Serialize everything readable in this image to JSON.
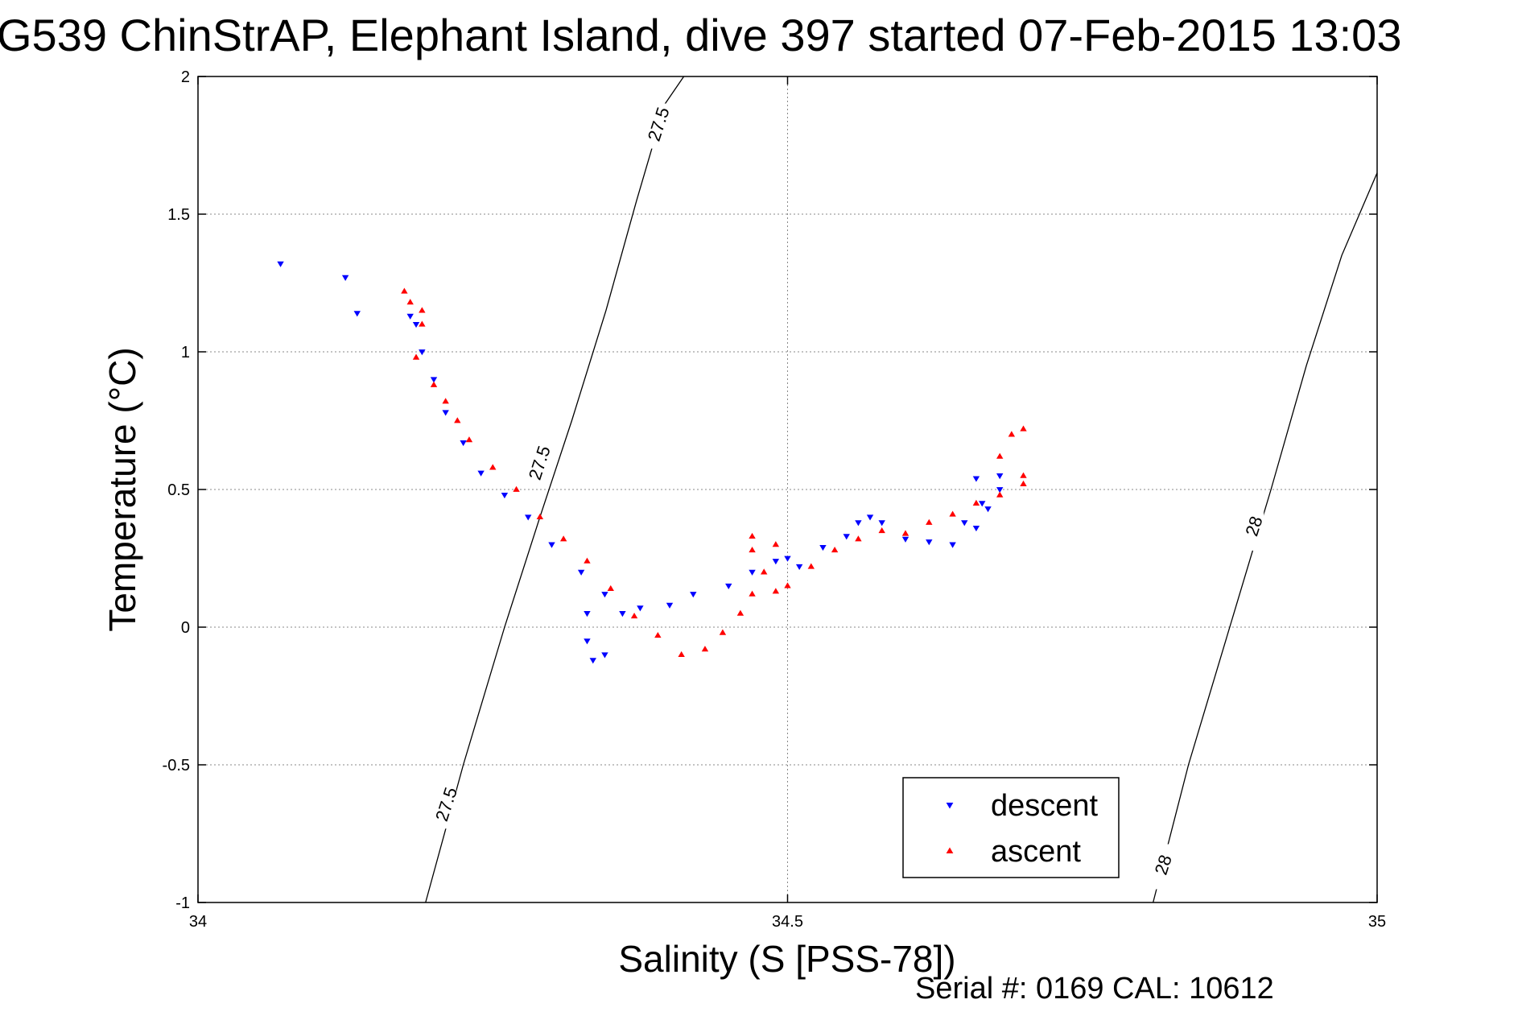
{
  "title": "G539 ChinStrAP, Elephant Island, dive 397 started 07-Feb-2015 13:03",
  "footer": "Serial #: 0169 CAL: 10612",
  "colors": {
    "descent": "#0000ff",
    "ascent": "#ff0000",
    "axes": "#000000",
    "grid": "#888888"
  },
  "chart_data": {
    "type": "scatter",
    "title": "G539 ChinStrAP, Elephant Island, dive 397 started 07-Feb-2015 13:03",
    "xlabel": "Salinity (S [PSS-78])",
    "ylabel": "Temperature (°C)",
    "xlim": [
      34,
      35
    ],
    "ylim": [
      -1,
      2
    ],
    "xticks": [
      34,
      34.5,
      35
    ],
    "xtick_labels": [
      "34",
      "34.5",
      "35"
    ],
    "yticks": [
      -1,
      -0.5,
      0,
      0.5,
      1,
      1.5,
      2
    ],
    "ytick_labels": [
      "-1",
      "-0.5",
      "0",
      "0.5",
      "1",
      "1.5",
      "2"
    ],
    "grid": true,
    "legend_position": "bottom-right",
    "contours": [
      {
        "label": "27.5",
        "x": [
          34.193,
          34.225,
          34.26,
          34.29,
          34.317,
          34.346,
          34.372,
          34.396,
          34.412
        ],
        "y": [
          -1.0,
          -0.5,
          0.0,
          0.4,
          0.75,
          1.15,
          1.55,
          1.9,
          2.0
        ],
        "label_positions": [
          [
            34.21,
            -0.65
          ],
          [
            34.289,
            0.59
          ],
          [
            34.39,
            1.82
          ]
        ]
      },
      {
        "label": "28",
        "x": [
          34.81,
          34.84,
          34.875,
          34.91,
          34.94,
          34.97,
          35.0
        ],
        "y": [
          -1.0,
          -0.5,
          0.0,
          0.5,
          0.95,
          1.35,
          1.65
        ],
        "label_positions": [
          [
            34.818,
            -0.87
          ],
          [
            34.895,
            0.36
          ]
        ]
      }
    ],
    "series": [
      {
        "name": "descent",
        "marker": "triangle-down",
        "x": [
          34.07,
          34.125,
          34.135,
          34.18,
          34.185,
          34.19,
          34.2,
          34.21,
          34.225,
          34.24,
          34.26,
          34.28,
          34.3,
          34.325,
          34.345,
          34.33,
          34.33,
          34.335,
          34.345,
          34.36,
          34.375,
          34.4,
          34.42,
          34.45,
          34.47,
          34.49,
          34.5,
          34.51,
          34.53,
          34.55,
          34.56,
          34.57,
          34.58,
          34.6,
          34.62,
          34.64,
          34.66,
          34.67,
          34.68,
          34.66,
          34.65,
          34.665,
          34.68
        ],
        "y": [
          1.32,
          1.27,
          1.14,
          1.13,
          1.1,
          1.0,
          0.9,
          0.78,
          0.67,
          0.56,
          0.48,
          0.4,
          0.3,
          0.2,
          0.12,
          0.05,
          -0.05,
          -0.12,
          -0.1,
          0.05,
          0.07,
          0.08,
          0.12,
          0.15,
          0.2,
          0.24,
          0.25,
          0.22,
          0.29,
          0.33,
          0.38,
          0.4,
          0.38,
          0.32,
          0.31,
          0.3,
          0.36,
          0.43,
          0.5,
          0.54,
          0.38,
          0.45,
          0.55
        ]
      },
      {
        "name": "ascent",
        "marker": "triangle-up",
        "x": [
          34.175,
          34.18,
          34.19,
          34.19,
          34.185,
          34.2,
          34.21,
          34.22,
          34.23,
          34.25,
          34.27,
          34.29,
          34.31,
          34.33,
          34.35,
          34.37,
          34.39,
          34.41,
          34.43,
          34.445,
          34.46,
          34.47,
          34.48,
          34.49,
          34.47,
          34.47,
          34.49,
          34.5,
          34.52,
          34.54,
          34.56,
          34.58,
          34.6,
          34.62,
          34.64,
          34.66,
          34.68,
          34.7,
          34.68,
          34.69,
          34.7,
          34.7
        ],
        "y": [
          1.22,
          1.18,
          1.15,
          1.1,
          0.98,
          0.88,
          0.82,
          0.75,
          0.68,
          0.58,
          0.5,
          0.4,
          0.32,
          0.24,
          0.14,
          0.04,
          -0.03,
          -0.1,
          -0.08,
          -0.02,
          0.05,
          0.12,
          0.2,
          0.3,
          0.33,
          0.28,
          0.13,
          0.15,
          0.22,
          0.28,
          0.32,
          0.35,
          0.34,
          0.38,
          0.41,
          0.45,
          0.48,
          0.52,
          0.62,
          0.7,
          0.72,
          0.55
        ]
      }
    ]
  }
}
